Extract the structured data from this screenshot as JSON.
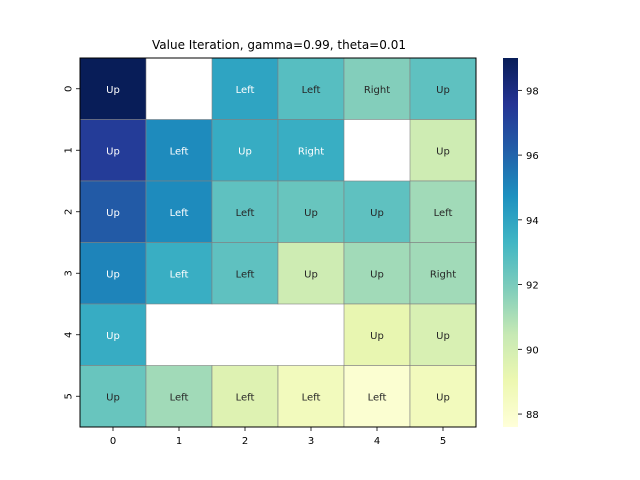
{
  "chart_data": {
    "type": "heatmap",
    "title": "Value Iteration, gamma=0.99, theta=0.01",
    "x_categories": [
      "0",
      "1",
      "2",
      "3",
      "4",
      "5"
    ],
    "y_categories": [
      "0",
      "1",
      "2",
      "3",
      "4",
      "5"
    ],
    "values": [
      [
        99.0,
        null,
        94.0,
        92.8,
        91.8,
        92.6
      ],
      [
        97.3,
        94.9,
        93.7,
        93.6,
        null,
        90.2
      ],
      [
        96.3,
        94.9,
        92.6,
        92.4,
        92.6,
        91.2
      ],
      [
        95.1,
        93.6,
        92.6,
        90.2,
        91.2,
        91.2
      ],
      [
        93.7,
        null,
        null,
        null,
        89.2,
        89.8
      ],
      [
        92.4,
        91.2,
        89.6,
        88.6,
        87.9,
        88.6
      ]
    ],
    "labels": [
      [
        "Up",
        "",
        "Left",
        "Left",
        "Right",
        "Up"
      ],
      [
        "Up",
        "Left",
        "Up",
        "Right",
        "",
        "Up"
      ],
      [
        "Up",
        "Left",
        "Left",
        "Up",
        "Up",
        "Left"
      ],
      [
        "Up",
        "Left",
        "Left",
        "Up",
        "Up",
        "Right"
      ],
      [
        "Up",
        "",
        "",
        "",
        "Up",
        "Up"
      ],
      [
        "Up",
        "Left",
        "Left",
        "Left",
        "Left",
        "Up"
      ]
    ],
    "colorbar": {
      "range": [
        87.6,
        99.0
      ],
      "ticks": [
        88,
        90,
        92,
        94,
        96,
        98
      ],
      "colormap": "YlGnBu"
    },
    "grid": true,
    "legend": "colorbar-right"
  }
}
